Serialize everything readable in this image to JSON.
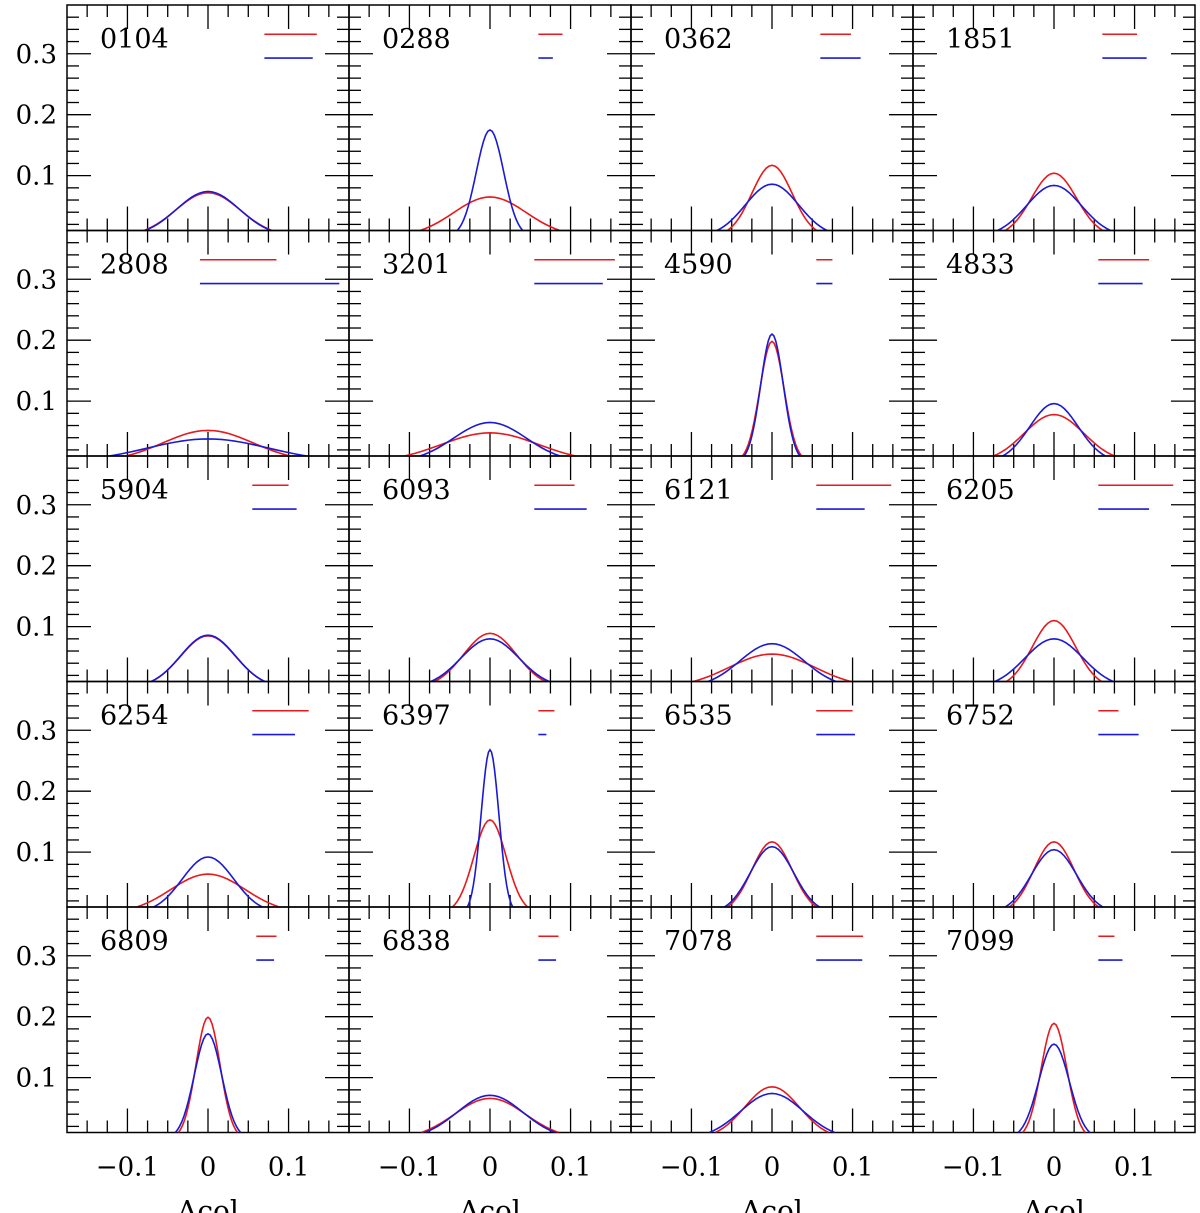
{
  "chart_data": {
    "type": "line",
    "grid_rows": 5,
    "grid_cols": 4,
    "xlabel": "Δcol",
    "ylabel": "",
    "xlim": [
      -0.175,
      0.175
    ],
    "ylim": [
      0.01,
      0.38
    ],
    "xticks": [
      {
        "value": -0.1,
        "label": "−0.1"
      },
      {
        "value": 0,
        "label": "0"
      },
      {
        "value": 0.1,
        "label": "0.1"
      }
    ],
    "yticks": [
      {
        "value": 0.1,
        "label": "0.1"
      },
      {
        "value": 0.2,
        "label": "0.2"
      },
      {
        "value": 0.3,
        "label": "0.3"
      }
    ],
    "series_colors": {
      "red": "#e8191c",
      "blue": "#1a1ad6"
    },
    "panels": [
      {
        "label": "0104",
        "red": {
          "peak": 0.072,
          "sigma": 0.04
        },
        "blue": {
          "peak": 0.074,
          "sigma": 0.039
        },
        "legend": {
          "red": [
            0.07,
            0.135
          ],
          "blue": [
            0.07,
            0.13
          ]
        }
      },
      {
        "label": "0288",
        "red": {
          "peak": 0.065,
          "sigma": 0.045
        },
        "blue": {
          "peak": 0.175,
          "sigma": 0.017
        },
        "legend": {
          "red": [
            0.06,
            0.09
          ],
          "blue": [
            0.06,
            0.078
          ]
        }
      },
      {
        "label": "0362",
        "red": {
          "peak": 0.117,
          "sigma": 0.025
        },
        "blue": {
          "peak": 0.086,
          "sigma": 0.033
        },
        "legend": {
          "red": [
            0.06,
            0.098
          ],
          "blue": [
            0.06,
            0.11
          ]
        }
      },
      {
        "label": "1851",
        "red": {
          "peak": 0.104,
          "sigma": 0.028
        },
        "blue": {
          "peak": 0.084,
          "sigma": 0.034
        },
        "legend": {
          "red": [
            0.06,
            0.103
          ],
          "blue": [
            0.06,
            0.115
          ]
        }
      },
      {
        "label": "2808",
        "red": {
          "peak": 0.052,
          "sigma": 0.056
        },
        "blue": {
          "peak": 0.038,
          "sigma": 0.075
        },
        "legend": {
          "red": [
            -0.01,
            0.085
          ],
          "blue": [
            -0.01,
            0.163
          ]
        }
      },
      {
        "label": "3201",
        "red": {
          "peak": 0.048,
          "sigma": 0.06
        },
        "blue": {
          "peak": 0.065,
          "sigma": 0.045
        },
        "legend": {
          "red": [
            0.055,
            0.155
          ],
          "blue": [
            0.055,
            0.14
          ]
        }
      },
      {
        "label": "4590",
        "red": {
          "peak": 0.198,
          "sigma": 0.015
        },
        "blue": {
          "peak": 0.21,
          "sigma": 0.014
        },
        "legend": {
          "red": [
            0.055,
            0.075
          ],
          "blue": [
            0.055,
            0.075
          ]
        }
      },
      {
        "label": "4833",
        "red": {
          "peak": 0.078,
          "sigma": 0.037
        },
        "blue": {
          "peak": 0.096,
          "sigma": 0.03
        },
        "legend": {
          "red": [
            0.055,
            0.118
          ],
          "blue": [
            0.055,
            0.11
          ]
        }
      },
      {
        "label": "5904",
        "red": {
          "peak": 0.085,
          "sigma": 0.034
        },
        "blue": {
          "peak": 0.086,
          "sigma": 0.034
        },
        "legend": {
          "red": [
            0.055,
            0.1
          ],
          "blue": [
            0.055,
            0.11
          ]
        }
      },
      {
        "label": "6093",
        "red": {
          "peak": 0.089,
          "sigma": 0.033
        },
        "blue": {
          "peak": 0.08,
          "sigma": 0.036
        },
        "legend": {
          "red": [
            0.055,
            0.105
          ],
          "blue": [
            0.055,
            0.12
          ]
        }
      },
      {
        "label": "6121",
        "red": {
          "peak": 0.055,
          "sigma": 0.053
        },
        "blue": {
          "peak": 0.072,
          "sigma": 0.04
        },
        "legend": {
          "red": [
            0.055,
            0.148
          ],
          "blue": [
            0.055,
            0.115
          ]
        }
      },
      {
        "label": "6205",
        "red": {
          "peak": 0.11,
          "sigma": 0.027
        },
        "blue": {
          "peak": 0.08,
          "sigma": 0.036
        },
        "legend": {
          "red": [
            0.055,
            0.148
          ],
          "blue": [
            0.055,
            0.118
          ]
        }
      },
      {
        "label": "6254",
        "red": {
          "peak": 0.064,
          "sigma": 0.046
        },
        "blue": {
          "peak": 0.092,
          "sigma": 0.032
        },
        "legend": {
          "red": [
            0.055,
            0.125
          ],
          "blue": [
            0.055,
            0.108
          ]
        }
      },
      {
        "label": "6397",
        "red": {
          "peak": 0.153,
          "sigma": 0.02
        },
        "blue": {
          "peak": 0.268,
          "sigma": 0.011
        },
        "legend": {
          "red": [
            0.06,
            0.08
          ],
          "blue": [
            0.06,
            0.07
          ]
        }
      },
      {
        "label": "6535",
        "red": {
          "peak": 0.117,
          "sigma": 0.025
        },
        "blue": {
          "peak": 0.109,
          "sigma": 0.027
        },
        "legend": {
          "red": [
            0.055,
            0.1
          ],
          "blue": [
            0.055,
            0.103
          ]
        }
      },
      {
        "label": "6752",
        "red": {
          "peak": 0.117,
          "sigma": 0.025
        },
        "blue": {
          "peak": 0.104,
          "sigma": 0.028
        },
        "legend": {
          "red": [
            0.055,
            0.08
          ],
          "blue": [
            0.055,
            0.105
          ]
        }
      },
      {
        "label": "6809",
        "red": {
          "peak": 0.199,
          "sigma": 0.015
        },
        "blue": {
          "peak": 0.172,
          "sigma": 0.017
        },
        "legend": {
          "red": [
            0.06,
            0.085
          ],
          "blue": [
            0.06,
            0.082
          ]
        }
      },
      {
        "label": "6838",
        "red": {
          "peak": 0.066,
          "sigma": 0.044
        },
        "blue": {
          "peak": 0.071,
          "sigma": 0.041
        },
        "legend": {
          "red": [
            0.06,
            0.085
          ],
          "blue": [
            0.06,
            0.082
          ]
        }
      },
      {
        "label": "7078",
        "red": {
          "peak": 0.085,
          "sigma": 0.034
        },
        "blue": {
          "peak": 0.074,
          "sigma": 0.039
        },
        "legend": {
          "red": [
            0.055,
            0.113
          ],
          "blue": [
            0.055,
            0.112
          ]
        }
      },
      {
        "label": "7099",
        "red": {
          "peak": 0.189,
          "sigma": 0.016
        },
        "blue": {
          "peak": 0.155,
          "sigma": 0.019
        },
        "legend": {
          "red": [
            0.055,
            0.075
          ],
          "blue": [
            0.055,
            0.085
          ]
        }
      }
    ]
  }
}
